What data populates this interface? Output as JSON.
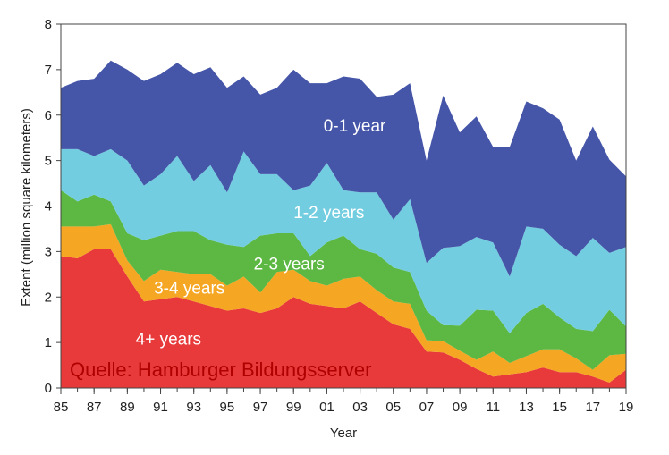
{
  "chart_data": {
    "type": "area",
    "stacked": true,
    "title": "",
    "xlabel": "Year",
    "ylabel": "Extent (million square kilometers)",
    "ylim": [
      0,
      8
    ],
    "yticks": [
      0,
      1,
      2,
      3,
      4,
      5,
      6,
      7,
      8
    ],
    "xlim": [
      1985,
      2019
    ],
    "x": [
      1985,
      1986,
      1987,
      1988,
      1989,
      1990,
      1991,
      1992,
      1993,
      1994,
      1995,
      1996,
      1997,
      1998,
      1999,
      2000,
      2001,
      2002,
      2003,
      2004,
      2005,
      2006,
      2007,
      2008,
      2009,
      2010,
      2011,
      2012,
      2013,
      2014,
      2015,
      2016,
      2017,
      2018,
      2019
    ],
    "xtick_values": [
      1985,
      1987,
      1989,
      1991,
      1993,
      1995,
      1997,
      1999,
      2001,
      2003,
      2005,
      2007,
      2009,
      2011,
      2013,
      2015,
      2017,
      2019
    ],
    "xtick_labels": [
      "85",
      "87",
      "89",
      "91",
      "93",
      "95",
      "97",
      "99",
      "01",
      "03",
      "05",
      "07",
      "09",
      "11",
      "13",
      "15",
      "17",
      "19"
    ],
    "series": [
      {
        "name": "4+ years",
        "color": "#e83a3a",
        "values": [
          2.9,
          2.85,
          3.05,
          3.05,
          2.45,
          1.9,
          1.95,
          2.0,
          1.9,
          1.8,
          1.7,
          1.75,
          1.65,
          1.75,
          2.0,
          1.85,
          1.8,
          1.75,
          1.9,
          1.65,
          1.4,
          1.3,
          0.8,
          0.78,
          0.62,
          0.42,
          0.25,
          0.3,
          0.35,
          0.45,
          0.35,
          0.35,
          0.25,
          0.12,
          0.4
        ]
      },
      {
        "name": "3-4 years",
        "color": "#f5a623",
        "values": [
          0.65,
          0.7,
          0.5,
          0.55,
          0.35,
          0.45,
          0.65,
          0.55,
          0.6,
          0.7,
          0.55,
          0.7,
          0.45,
          0.8,
          0.6,
          0.5,
          0.45,
          0.65,
          0.55,
          0.5,
          0.5,
          0.55,
          0.25,
          0.25,
          0.2,
          0.2,
          0.55,
          0.25,
          0.35,
          0.4,
          0.5,
          0.3,
          0.15,
          0.6,
          0.35
        ]
      },
      {
        "name": "2-3 years",
        "color": "#5cb843",
        "values": [
          0.8,
          0.55,
          0.7,
          0.5,
          0.6,
          0.9,
          0.75,
          0.9,
          0.95,
          0.75,
          0.9,
          0.65,
          1.25,
          0.85,
          0.8,
          0.55,
          0.95,
          0.95,
          0.6,
          0.8,
          0.75,
          0.7,
          0.65,
          0.35,
          0.55,
          1.1,
          0.9,
          0.65,
          0.95,
          1.0,
          0.7,
          0.65,
          0.85,
          1.0,
          0.6
        ]
      },
      {
        "name": "1-2 years",
        "color": "#73cde0",
        "values": [
          0.9,
          1.15,
          0.85,
          1.15,
          1.6,
          1.2,
          1.35,
          1.65,
          1.1,
          1.65,
          1.15,
          2.1,
          1.35,
          1.3,
          0.95,
          1.55,
          1.75,
          1.0,
          1.25,
          1.35,
          1.05,
          1.6,
          1.05,
          1.7,
          1.75,
          1.6,
          1.5,
          1.25,
          1.9,
          1.65,
          1.6,
          1.6,
          2.05,
          1.25,
          1.75
        ]
      },
      {
        "name": "0-1 year",
        "color": "#4555a8",
        "values": [
          1.35,
          1.5,
          1.7,
          1.95,
          2.0,
          2.3,
          2.2,
          2.05,
          2.35,
          2.15,
          2.3,
          1.65,
          1.75,
          1.9,
          2.65,
          2.25,
          1.75,
          2.5,
          2.5,
          2.1,
          2.75,
          2.55,
          2.25,
          3.35,
          2.5,
          2.65,
          2.1,
          2.85,
          2.75,
          2.65,
          2.75,
          2.1,
          2.45,
          2.05,
          1.55
        ]
      }
    ]
  },
  "source_note": "Quelle: Hamburger Bildungsserver"
}
